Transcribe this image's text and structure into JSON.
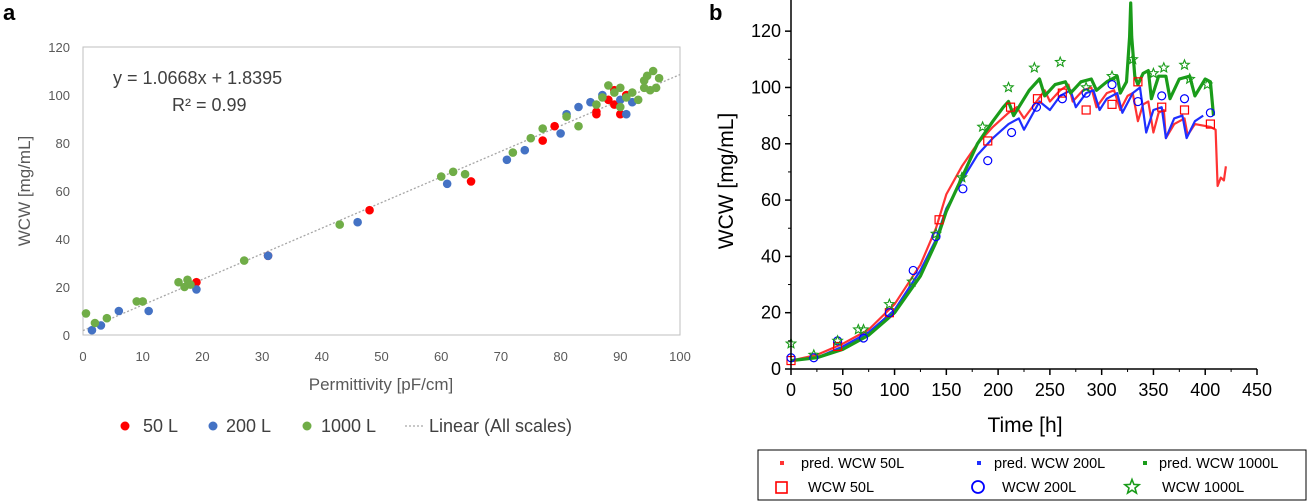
{
  "chart_data": [
    {
      "type": "scatter",
      "panel_label": "a",
      "xlabel": "Permittivity  [pF/cm]",
      "ylabel": "WCW [mg/mL]",
      "xlim": [
        0,
        100
      ],
      "ylim": [
        0,
        120
      ],
      "xticks": [
        0,
        10,
        20,
        30,
        40,
        50,
        60,
        70,
        80,
        90,
        100
      ],
      "yticks": [
        0,
        20,
        40,
        60,
        80,
        100,
        120
      ],
      "grid": false,
      "legend_position": "bottom",
      "annotations": [
        "y = 1.0668x + 1.8395",
        "R² = 0.99"
      ],
      "trendline": {
        "name": "Linear (All scales)",
        "slope": 1.0668,
        "intercept": 1.8395,
        "color": "#a6a6a6"
      },
      "series": [
        {
          "name": "50 L",
          "color": "#ff0000",
          "points": [
            [
              19,
              22
            ],
            [
              31,
              33
            ],
            [
              48,
              52
            ],
            [
              65,
              64
            ],
            [
              77,
              81
            ],
            [
              79,
              87
            ],
            [
              86,
              92
            ],
            [
              86,
              93
            ],
            [
              88,
              98
            ],
            [
              89,
              96
            ],
            [
              89,
              102
            ],
            [
              90,
              92
            ],
            [
              91,
              100
            ]
          ]
        },
        {
          "name": "200 L",
          "color": "#4472c4",
          "points": [
            [
              1.5,
              2
            ],
            [
              3,
              4
            ],
            [
              6,
              10
            ],
            [
              11,
              10
            ],
            [
              19,
              19
            ],
            [
              31,
              33
            ],
            [
              46,
              47
            ],
            [
              61,
              63
            ],
            [
              71,
              73
            ],
            [
              74,
              77
            ],
            [
              80,
              84
            ],
            [
              81,
              92
            ],
            [
              83,
              95
            ],
            [
              85,
              97
            ],
            [
              87,
              100
            ],
            [
              90,
              98
            ],
            [
              91,
              92
            ],
            [
              92,
              97
            ]
          ]
        },
        {
          "name": "1000 L",
          "color": "#70ad47",
          "points": [
            [
              0.5,
              9
            ],
            [
              2,
              5
            ],
            [
              4,
              7
            ],
            [
              9,
              14
            ],
            [
              10,
              14
            ],
            [
              16,
              22
            ],
            [
              17,
              20
            ],
            [
              17.5,
              23
            ],
            [
              18,
              21
            ],
            [
              27,
              31
            ],
            [
              43,
              46
            ],
            [
              60,
              66
            ],
            [
              62,
              68
            ],
            [
              64,
              67
            ],
            [
              72,
              76
            ],
            [
              75,
              82
            ],
            [
              77,
              86
            ],
            [
              81,
              91
            ],
            [
              83,
              87
            ],
            [
              86,
              96
            ],
            [
              87,
              99
            ],
            [
              88,
              104
            ],
            [
              89,
              101
            ],
            [
              90,
              95
            ],
            [
              90,
              103
            ],
            [
              91,
              99
            ],
            [
              92,
              101
            ],
            [
              93,
              98
            ],
            [
              94,
              103
            ],
            [
              94,
              106
            ],
            [
              94.5,
              108
            ],
            [
              95,
              102
            ],
            [
              95.5,
              110
            ],
            [
              96,
              103
            ],
            [
              96.5,
              107
            ]
          ]
        }
      ]
    },
    {
      "type": "line",
      "panel_label": "b",
      "xlabel": "Time [h]",
      "ylabel": "WCW [mg/mL]",
      "xlim": [
        0,
        450
      ],
      "ylim": [
        0,
        130
      ],
      "xticks": [
        0,
        50,
        100,
        150,
        200,
        250,
        300,
        350,
        400,
        450
      ],
      "yticks": [
        0,
        20,
        40,
        60,
        80,
        100,
        120
      ],
      "grid": false,
      "legend_position": "bottom",
      "series": [
        {
          "name": "pred. WCW 50L",
          "color": "#ff3333",
          "points": [
            [
              0,
              3
            ],
            [
              25,
              5
            ],
            [
              50,
              9
            ],
            [
              75,
              14
            ],
            [
              100,
              23
            ],
            [
              125,
              37
            ],
            [
              140,
              50
            ],
            [
              150,
              62
            ],
            [
              165,
              72
            ],
            [
              180,
              80
            ],
            [
              195,
              86
            ],
            [
              210,
              91
            ],
            [
              218,
              93
            ],
            [
              225,
              89
            ],
            [
              235,
              94
            ],
            [
              245,
              99
            ],
            [
              250,
              95
            ],
            [
              260,
              99
            ],
            [
              268,
              101
            ],
            [
              272,
              95
            ],
            [
              282,
              99
            ],
            [
              290,
              100
            ],
            [
              295,
              93
            ],
            [
              305,
              98
            ],
            [
              312,
              99
            ],
            [
              318,
              92
            ],
            [
              325,
              97
            ],
            [
              330,
              98
            ],
            [
              335,
              88
            ],
            [
              340,
              94
            ],
            [
              345,
              95
            ],
            [
              350,
              84
            ],
            [
              355,
              91
            ],
            [
              360,
              92
            ],
            [
              362,
              82
            ],
            [
              370,
              87
            ],
            [
              380,
              89
            ],
            [
              383,
              83
            ],
            [
              390,
              87
            ],
            [
              405,
              86
            ],
            [
              410,
              85
            ],
            [
              412,
              65
            ],
            [
              415,
              68
            ],
            [
              418,
              67
            ],
            [
              420,
              72
            ]
          ]
        },
        {
          "name": "pred. WCW 200L",
          "color": "#1f2fff",
          "points": [
            [
              0,
              3
            ],
            [
              25,
              4
            ],
            [
              50,
              8
            ],
            [
              75,
              13
            ],
            [
              100,
              21
            ],
            [
              125,
              35
            ],
            [
              140,
              46
            ],
            [
              150,
              57
            ],
            [
              165,
              67
            ],
            [
              180,
              76
            ],
            [
              195,
              82
            ],
            [
              210,
              87
            ],
            [
              220,
              89
            ],
            [
              225,
              85
            ],
            [
              240,
              95
            ],
            [
              250,
              92
            ],
            [
              260,
              97
            ],
            [
              270,
              99
            ],
            [
              275,
              93
            ],
            [
              285,
              98
            ],
            [
              292,
              99
            ],
            [
              298,
              92
            ],
            [
              305,
              96
            ],
            [
              315,
              98
            ],
            [
              320,
              91
            ],
            [
              330,
              98
            ],
            [
              337,
              100
            ],
            [
              343,
              84
            ],
            [
              350,
              92
            ],
            [
              358,
              93
            ],
            [
              362,
              82
            ],
            [
              370,
              89
            ],
            [
              378,
              90
            ],
            [
              382,
              82
            ],
            [
              390,
              88
            ],
            [
              398,
              90
            ]
          ]
        },
        {
          "name": "pred. WCW 1000L",
          "color": "#1a9c1a",
          "points": [
            [
              0,
              3
            ],
            [
              25,
              4
            ],
            [
              50,
              7
            ],
            [
              75,
              12
            ],
            [
              100,
              20
            ],
            [
              125,
              33
            ],
            [
              140,
              45
            ],
            [
              150,
              56
            ],
            [
              165,
              68
            ],
            [
              180,
              80
            ],
            [
              195,
              88
            ],
            [
              205,
              93
            ],
            [
              210,
              95
            ],
            [
              215,
              90
            ],
            [
              230,
              99
            ],
            [
              240,
              103
            ],
            [
              245,
              97
            ],
            [
              255,
              101
            ],
            [
              265,
              102
            ],
            [
              270,
              98
            ],
            [
              280,
              102
            ],
            [
              290,
              103
            ],
            [
              295,
              99
            ],
            [
              305,
              102
            ],
            [
              315,
              104
            ],
            [
              318,
              98
            ],
            [
              324,
              102
            ],
            [
              327,
              118
            ],
            [
              328,
              130
            ],
            [
              329,
              118
            ],
            [
              332,
              104
            ],
            [
              335,
              101
            ],
            [
              340,
              105
            ],
            [
              345,
              106
            ],
            [
              348,
              96
            ],
            [
              355,
              104
            ],
            [
              362,
              104
            ],
            [
              366,
              96
            ],
            [
              375,
              103
            ],
            [
              385,
              104
            ],
            [
              390,
              97
            ],
            [
              400,
              103
            ],
            [
              405,
              102
            ],
            [
              408,
              90
            ]
          ]
        },
        {
          "name": "WCW 50L",
          "color": "#ff0000",
          "points": [
            [
              0,
              3
            ],
            [
              45,
              8
            ],
            [
              95,
              20
            ],
            [
              143,
              53
            ],
            [
              190,
              81
            ],
            [
              212,
              93
            ],
            [
              238,
              96
            ],
            [
              262,
              98
            ],
            [
              285,
              92
            ],
            [
              310,
              94
            ],
            [
              335,
              102
            ],
            [
              358,
              93
            ],
            [
              380,
              92
            ],
            [
              405,
              87
            ]
          ]
        },
        {
          "name": "WCW 200L",
          "color": "#0000ff",
          "points": [
            [
              0,
              4
            ],
            [
              22,
              4
            ],
            [
              45,
              10
            ],
            [
              70,
              11
            ],
            [
              95,
              20
            ],
            [
              118,
              35
            ],
            [
              140,
              47
            ],
            [
              166,
              64
            ],
            [
              190,
              74
            ],
            [
              213,
              84
            ],
            [
              237,
              93
            ],
            [
              262,
              96
            ],
            [
              285,
              98
            ],
            [
              310,
              101
            ],
            [
              335,
              95
            ],
            [
              358,
              97
            ],
            [
              380,
              96
            ],
            [
              405,
              91
            ]
          ]
        },
        {
          "name": "WCW 1000L",
          "color": "#1a9c1a",
          "points": [
            [
              0,
              9
            ],
            [
              22,
              5
            ],
            [
              45,
              10
            ],
            [
              65,
              14
            ],
            [
              70,
              14
            ],
            [
              95,
              23
            ],
            [
              117,
              31
            ],
            [
              140,
              48
            ],
            [
              165,
              68
            ],
            [
              185,
              86
            ],
            [
              210,
              100
            ],
            [
              235,
              107
            ],
            [
              260,
              109
            ],
            [
              285,
              100
            ],
            [
              310,
              104
            ],
            [
              330,
              110
            ],
            [
              350,
              105
            ],
            [
              360,
              107
            ],
            [
              380,
              108
            ],
            [
              385,
              103
            ],
            [
              402,
              101
            ]
          ]
        }
      ]
    }
  ]
}
